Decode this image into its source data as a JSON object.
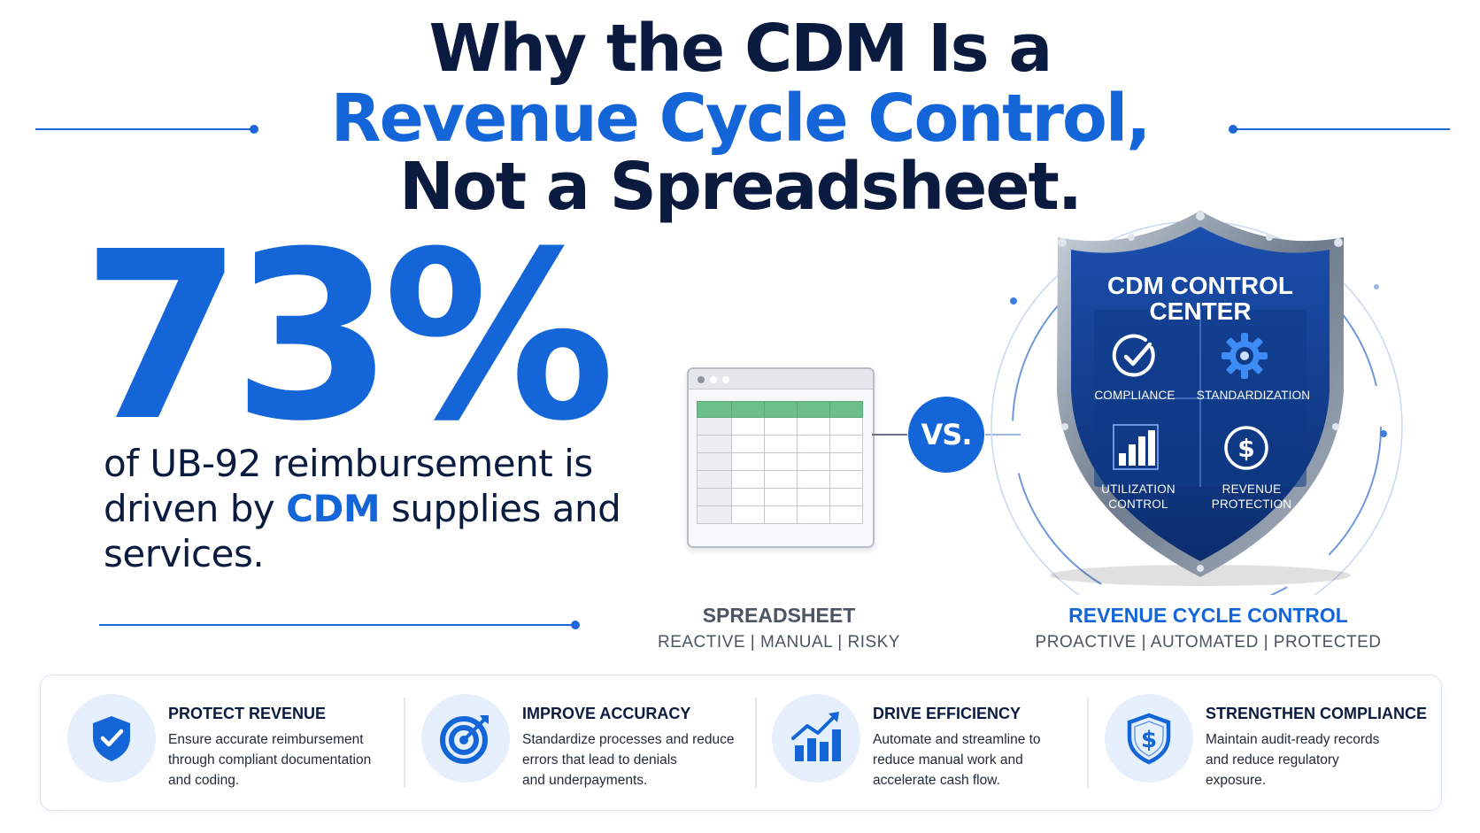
{
  "title": {
    "line1": "Why the CDM Is a",
    "line2": "Revenue Cycle Control,",
    "line3": "Not a Spreadsheet."
  },
  "stat": {
    "value": "73%",
    "desc_part1": "of UB-92 reimbursement is driven by ",
    "desc_highlight": "CDM",
    "desc_part2": " supplies and services."
  },
  "comparison": {
    "vs_label": "VS.",
    "left": {
      "title": "SPREADSHEET",
      "subtitle": "REACTIVE | MANUAL | RISKY"
    },
    "right": {
      "title": "REVENUE CYCLE CONTROL",
      "subtitle": "PROACTIVE | AUTOMATED | PROTECTED"
    }
  },
  "shield": {
    "heading_line1": "CDM CONTROL",
    "heading_line2": "CENTER",
    "cells": [
      {
        "label": "COMPLIANCE",
        "icon": "check-circle-icon"
      },
      {
        "label": "STANDARDIZATION",
        "icon": "gear-icon"
      },
      {
        "label_line1": "UTILIZATION",
        "label_line2": "CONTROL",
        "icon": "bar-chart-icon"
      },
      {
        "label_line1": "REVENUE",
        "label_line2": "PROTECTION",
        "icon": "dollar-coin-icon"
      }
    ]
  },
  "benefits": [
    {
      "title": "PROTECT REVENUE",
      "lines": [
        "Ensure accurate reimbursement",
        "through compliant documentation",
        "and coding."
      ],
      "icon": "shield-check-icon"
    },
    {
      "title": "IMPROVE ACCURACY",
      "lines": [
        "Standardize processes and reduce",
        "errors that lead to denials",
        "and underpayments."
      ],
      "icon": "target-icon"
    },
    {
      "title": "DRIVE EFFICIENCY",
      "lines": [
        "Automate and streamline to",
        "reduce manual work and",
        "accelerate cash flow."
      ],
      "icon": "growth-chart-icon"
    },
    {
      "title": "STRENGTHEN COMPLIANCE",
      "lines": [
        "Maintain audit-ready records",
        "and reduce regulatory",
        "exposure."
      ],
      "icon": "shield-dollar-icon"
    }
  ],
  "colors": {
    "brand_blue": "#1466d8",
    "navy": "#0b1b3f",
    "shield_blue": "#123f8f"
  }
}
